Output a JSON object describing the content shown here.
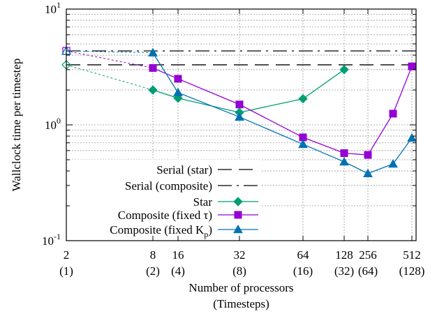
{
  "chart_data": {
    "type": "line",
    "xlabel": "Number of processors",
    "xlabel2": "(Timesteps)",
    "ylabel": "Wallclock time per timestep",
    "y_scale": "log",
    "ylim": [
      0.1,
      10
    ],
    "grid": true,
    "legend_position": "bottom-left inside",
    "x_ticks": [
      {
        "p": 2,
        "label": "2",
        "sub": "(1)"
      },
      {
        "p": 8,
        "label": "8",
        "sub": "(2)"
      },
      {
        "p": 16,
        "label": "16",
        "sub": "(4)"
      },
      {
        "p": 32,
        "label": "32",
        "sub": "(8)"
      },
      {
        "p": 64,
        "label": "64",
        "sub": "(16)"
      },
      {
        "p": 128,
        "label": "128",
        "sub": "(32)"
      },
      {
        "p": 256,
        "label": "256",
        "sub": "(64)"
      },
      {
        "p": 512,
        "label": "512",
        "sub": "(128)"
      }
    ],
    "y_ticks": [
      {
        "value": 0.1,
        "base": "10",
        "exp": "-1"
      },
      {
        "value": 1,
        "base": "10",
        "exp": "0"
      },
      {
        "value": 10,
        "base": "10",
        "exp": "1"
      }
    ],
    "series": [
      {
        "name": "Serial (star)",
        "kind": "hline",
        "value": 3.3,
        "color": "#000000",
        "dash": "20,10"
      },
      {
        "name": "Serial (composite)",
        "kind": "hline",
        "value": 4.35,
        "color": "#000000",
        "dash": "20,7,3,7"
      },
      {
        "name": "Star",
        "kind": "line",
        "marker": "diamond",
        "color": "#009e73",
        "serial_point": {
          "x": 2,
          "y": 3.3
        },
        "x": [
          8,
          16,
          32,
          64,
          128
        ],
        "y": [
          2.0,
          1.7,
          1.28,
          1.68,
          3.0
        ]
      },
      {
        "name": "Composite (fixed τ)",
        "kind": "line",
        "marker": "square",
        "color": "#9400d3",
        "serial_point": {
          "x": 2,
          "y": 4.35
        },
        "x": [
          8,
          16,
          32,
          64,
          128,
          256,
          384,
          512
        ],
        "y": [
          3.1,
          2.5,
          1.5,
          0.78,
          0.57,
          0.55,
          1.25,
          3.2
        ]
      },
      {
        "name": "Composite (fixed K",
        "name_sub": "p",
        "name_suffix": ")",
        "kind": "line",
        "marker": "triangle",
        "color": "#0072b2",
        "serial_point": {
          "x": 2,
          "y": 4.35
        },
        "x": [
          8,
          16,
          32,
          64,
          128,
          256,
          384,
          512
        ],
        "y": [
          4.2,
          1.9,
          1.17,
          0.68,
          0.48,
          0.38,
          0.46,
          0.77
        ]
      }
    ]
  }
}
